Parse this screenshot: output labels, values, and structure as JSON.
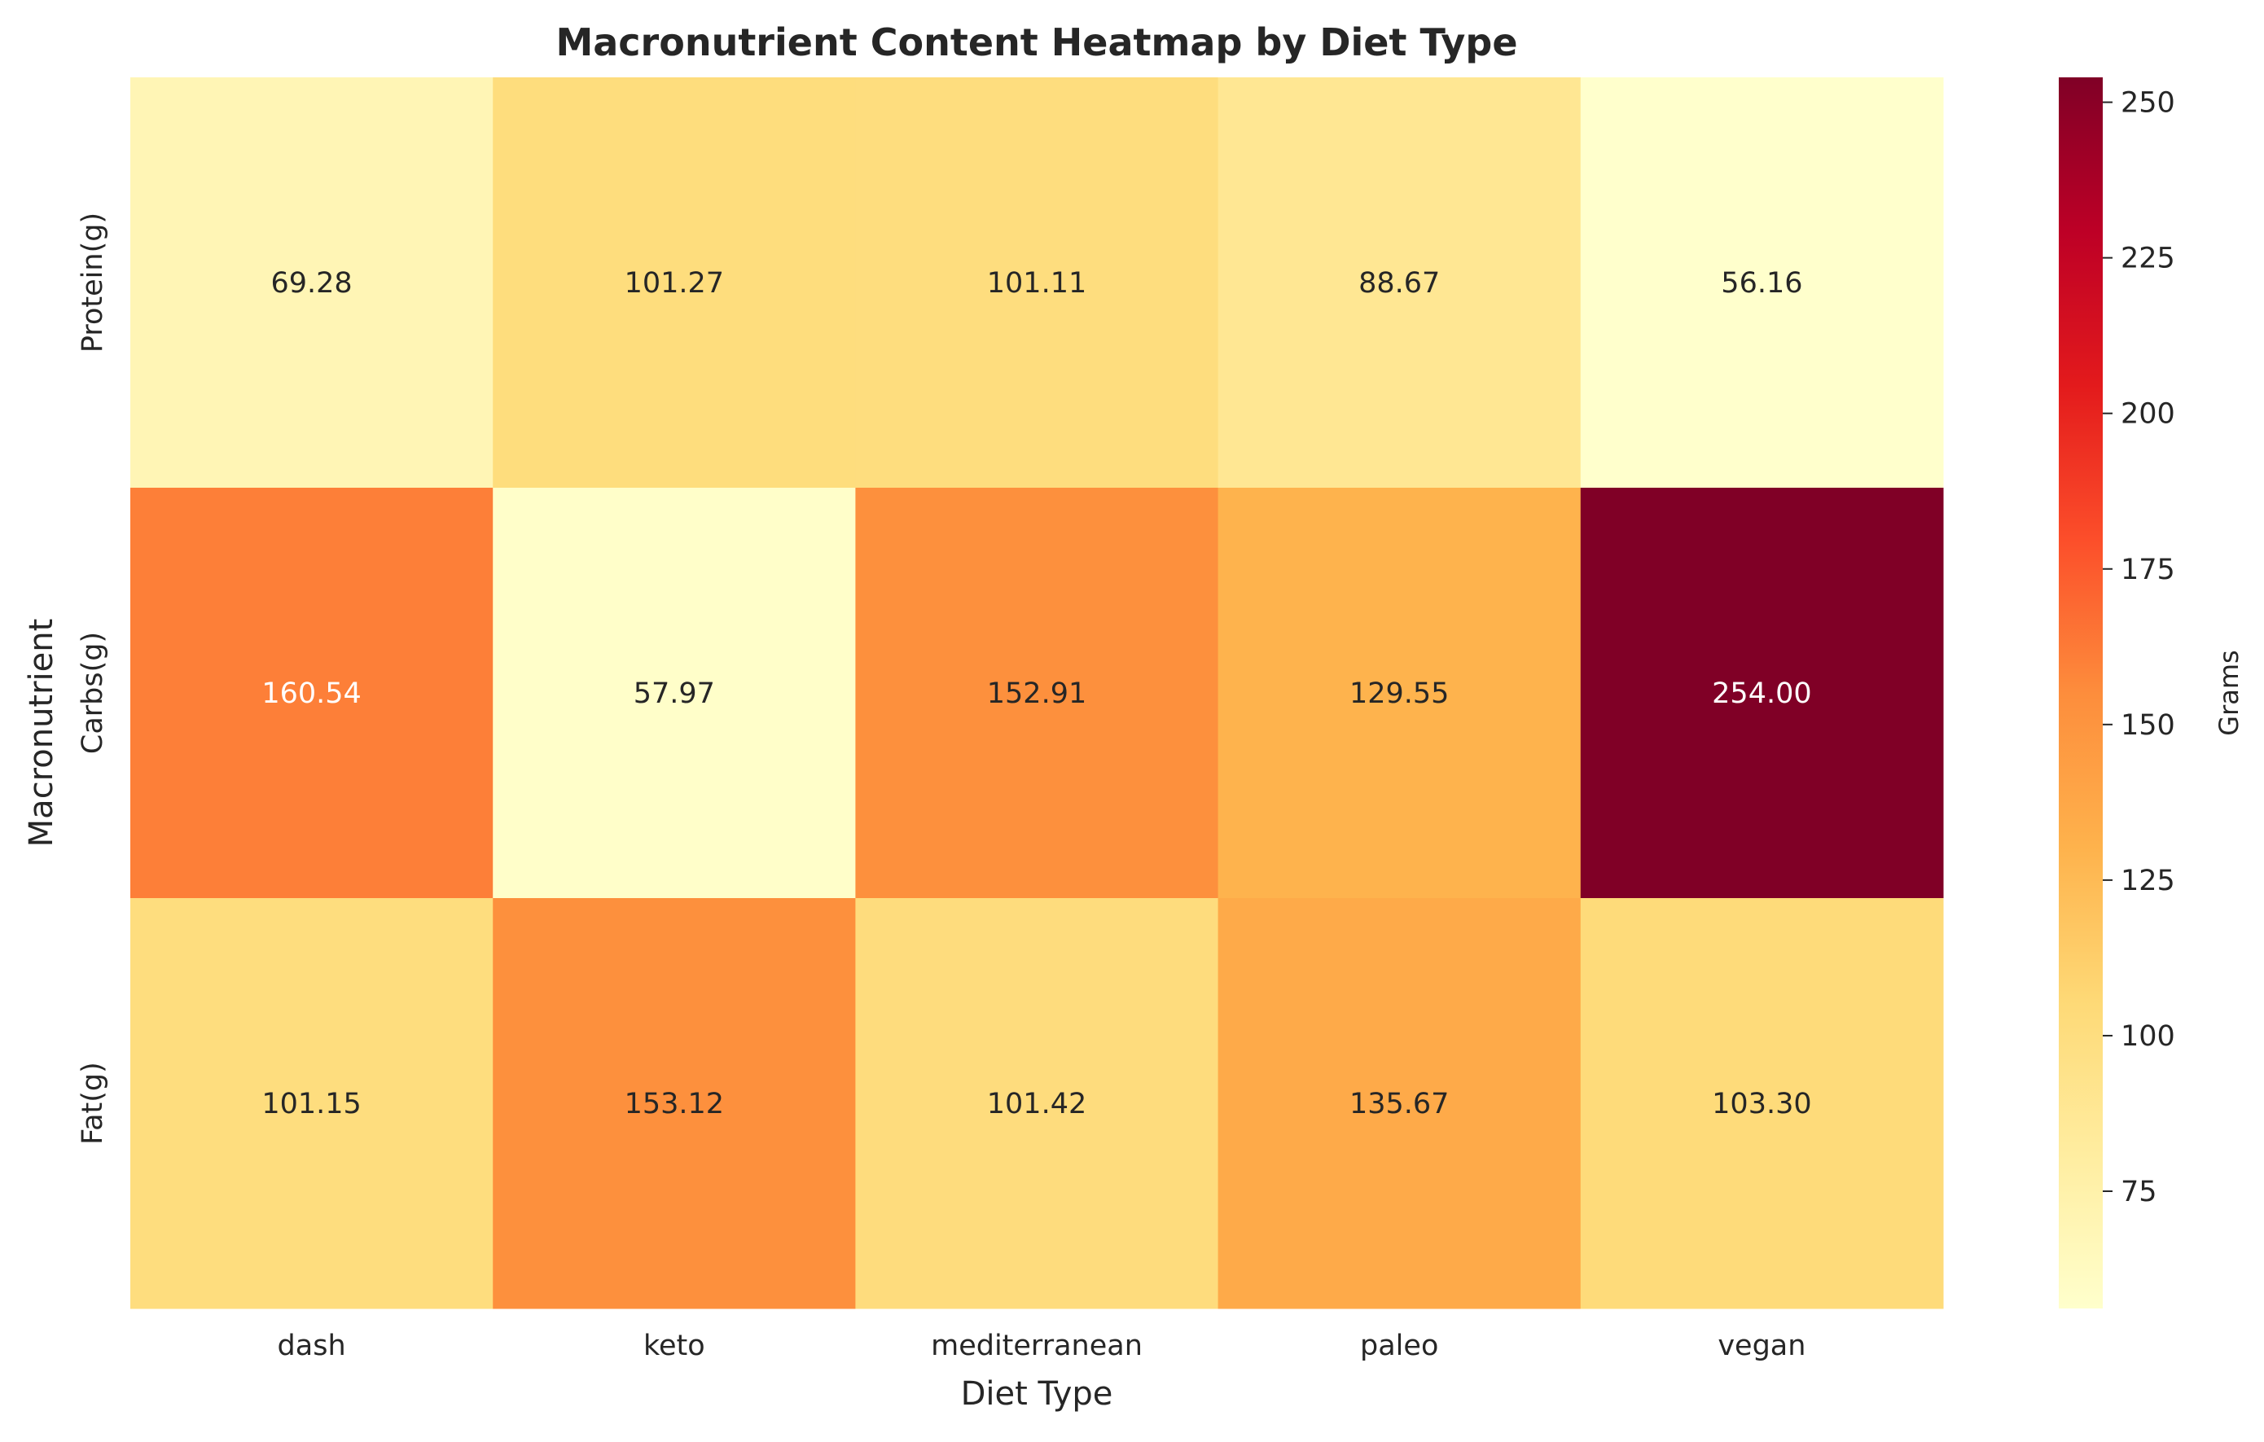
{
  "chart_data": {
    "type": "heatmap",
    "title": "Macronutrient Content Heatmap by Diet Type",
    "xlabel": "Diet Type",
    "ylabel": "Macronutrient",
    "x_categories": [
      "dash",
      "keto",
      "mediterranean",
      "paleo",
      "vegan"
    ],
    "y_categories": [
      "Protein(g)",
      "Carbs(g)",
      "Fat(g)"
    ],
    "values": [
      [
        69.28,
        101.27,
        101.11,
        88.67,
        56.16
      ],
      [
        160.54,
        57.97,
        152.91,
        129.55,
        254.0
      ],
      [
        101.15,
        153.12,
        101.42,
        135.67,
        103.3
      ]
    ],
    "cell_labels": [
      [
        "69.28",
        "101.27",
        "101.11",
        "88.67",
        "56.16"
      ],
      [
        "160.54",
        "57.97",
        "152.91",
        "129.55",
        "254.00"
      ],
      [
        "101.15",
        "153.12",
        "101.42",
        "135.67",
        "103.30"
      ]
    ],
    "colormap": "YlOrRd",
    "colormap_stops": [
      "#ffffcc",
      "#ffeda0",
      "#fed976",
      "#feb24c",
      "#fd8d3c",
      "#fc4e2a",
      "#e31a1c",
      "#bd0026",
      "#800026"
    ],
    "vmin": 56.16,
    "vmax": 254.0,
    "colorbar": {
      "label": "Grams",
      "ticks": [
        75,
        100,
        125,
        150,
        175,
        200,
        225,
        250
      ],
      "tick_labels": [
        "75",
        "100",
        "125",
        "150",
        "175",
        "200",
        "225",
        "250"
      ]
    },
    "grid": false,
    "legend": "colorbar-right"
  }
}
